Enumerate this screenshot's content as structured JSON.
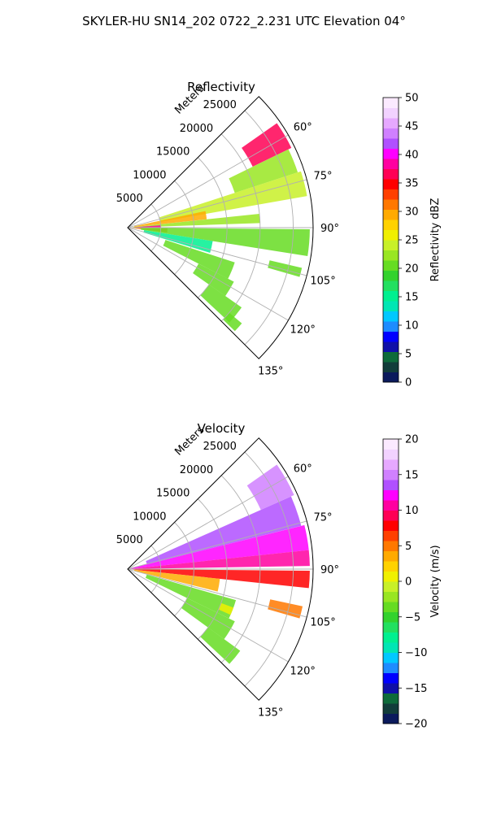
{
  "figure": {
    "suptitle": "SKYLER-HU  SN14_202  0722_2.231 UTC Elevation 04°"
  },
  "chart_data": [
    {
      "type": "heatmap",
      "subtype": "polar-sector",
      "title": "Reflectivity",
      "radial_label": "Meters",
      "radial_ticks": [
        "5000",
        "10000",
        "15000",
        "20000",
        "25000"
      ],
      "radial_tick_values": [
        5000,
        10000,
        15000,
        20000,
        25000
      ],
      "angle_ticks": [
        "60°",
        "75°",
        "90°",
        "105°",
        "120°",
        "135°"
      ],
      "angle_tick_values": [
        60,
        75,
        90,
        105,
        120,
        135
      ],
      "theta_range": [
        45,
        135
      ],
      "r_max": 28000,
      "grid": true,
      "colorbar": {
        "label": "Reflectivity dBZ",
        "range": [
          0,
          50
        ],
        "ticks": [
          "0",
          "5",
          "10",
          "15",
          "20",
          "25",
          "30",
          "35",
          "40",
          "45",
          "50"
        ],
        "tick_values": [
          0,
          5,
          10,
          15,
          20,
          25,
          30,
          35,
          40,
          45,
          50
        ],
        "colors": [
          "#0b1a5c",
          "#123d3a",
          "#0e6b3a",
          "#1010a8",
          "#0000ff",
          "#1e8cff",
          "#00c8ff",
          "#00e6b4",
          "#00f090",
          "#22e060",
          "#33d22d",
          "#66dc22",
          "#99e622",
          "#c8f028",
          "#f0f000",
          "#ffd200",
          "#ffaa00",
          "#ff7800",
          "#ff4000",
          "#ff0000",
          "#ff0055",
          "#ff00a0",
          "#ff00ff",
          "#b050ff",
          "#d080ff",
          "#e6a8ff",
          "#f2d2ff",
          "#fbeaff"
        ]
      },
      "regions": [
        {
          "theta": [
            55,
            64
          ],
          "r": [
            21000,
            27500
          ],
          "value": 37
        },
        {
          "theta": [
            64,
            72
          ],
          "r": [
            17000,
            27000
          ],
          "value": 22
        },
        {
          "theta": [
            72,
            80
          ],
          "r": [
            5000,
            27500
          ],
          "value": 24
        },
        {
          "theta": [
            78,
            84
          ],
          "r": [
            1000,
            12000
          ],
          "value": 30
        },
        {
          "theta": [
            84,
            88
          ],
          "r": [
            500,
            20000
          ],
          "value": 22
        },
        {
          "theta": [
            86,
            90
          ],
          "r": [
            300,
            5000
          ],
          "value": 38
        },
        {
          "theta": [
            91,
            97
          ],
          "r": [
            300,
            6000
          ],
          "value": 32
        },
        {
          "theta": [
            90.5,
            99
          ],
          "r": [
            2000,
            27500
          ],
          "value": 20
        },
        {
          "theta": [
            99,
            107
          ],
          "r": [
            2500,
            13000
          ],
          "value": 16
        },
        {
          "theta": [
            103,
            106
          ],
          "r": [
            22000,
            27000
          ],
          "value": 20
        },
        {
          "theta": [
            108,
            117
          ],
          "r": [
            6000,
            17000
          ],
          "value": 21
        },
        {
          "theta": [
            117,
            125
          ],
          "r": [
            12000,
            18000
          ],
          "value": 21
        },
        {
          "theta": [
            125,
            133
          ],
          "r": [
            15000,
            21000
          ],
          "value": 20
        },
        {
          "theta": [
            130,
            134
          ],
          "r": [
            20000,
            22500
          ],
          "value": 21
        }
      ]
    },
    {
      "type": "heatmap",
      "subtype": "polar-sector",
      "title": "Velocity",
      "radial_label": "Meters",
      "radial_ticks": [
        "5000",
        "10000",
        "15000",
        "20000",
        "25000"
      ],
      "radial_tick_values": [
        5000,
        10000,
        15000,
        20000,
        25000
      ],
      "angle_ticks": [
        "60°",
        "75°",
        "90°",
        "105°",
        "120°",
        "135°"
      ],
      "angle_tick_values": [
        60,
        75,
        90,
        105,
        120,
        135
      ],
      "theta_range": [
        45,
        135
      ],
      "r_max": 28000,
      "grid": true,
      "colorbar": {
        "label": "Velocity (m/s)",
        "range": [
          -20,
          20
        ],
        "ticks": [
          "−20",
          "−15",
          "−10",
          "−5",
          "0",
          "5",
          "10",
          "15",
          "20"
        ],
        "tick_values": [
          -20,
          -15,
          -10,
          -5,
          0,
          5,
          10,
          15,
          20
        ],
        "colors": [
          "#0b1a5c",
          "#123d3a",
          "#0e6b3a",
          "#1010a8",
          "#0000ff",
          "#1e8cff",
          "#00c8ff",
          "#00e6b4",
          "#00f090",
          "#22e060",
          "#33d22d",
          "#66dc22",
          "#99e622",
          "#c8f028",
          "#f0f000",
          "#ffd200",
          "#ffaa00",
          "#ff7800",
          "#ff4000",
          "#ff0000",
          "#ff0055",
          "#ff00a0",
          "#ff00ff",
          "#b050ff",
          "#d080ff",
          "#e6a8ff",
          "#f2d2ff",
          "#fbeaff"
        ]
      },
      "regions": [
        {
          "theta": [
            55,
            66
          ],
          "r": [
            22000,
            27500
          ],
          "value": 15
        },
        {
          "theta": [
            66,
            76
          ],
          "r": [
            3000,
            27000
          ],
          "value": 13
        },
        {
          "theta": [
            76,
            84
          ],
          "r": [
            500,
            27500
          ],
          "value": 12
        },
        {
          "theta": [
            84,
            89
          ],
          "r": [
            500,
            27500
          ],
          "value": 10
        },
        {
          "theta": [
            90.5,
            96
          ],
          "r": [
            500,
            27500
          ],
          "value": 8
        },
        {
          "theta": [
            96,
            104
          ],
          "r": [
            1000,
            14000
          ],
          "value": 3
        },
        {
          "theta": [
            102,
            106
          ],
          "r": [
            22000,
            27000
          ],
          "value": 5
        },
        {
          "theta": [
            106,
            116
          ],
          "r": [
            3000,
            17000
          ],
          "value": -3
        },
        {
          "theta": [
            116,
            126
          ],
          "r": [
            10000,
            18000
          ],
          "value": -3
        },
        {
          "theta": [
            126,
            133
          ],
          "r": [
            15000,
            21000
          ],
          "value": -4
        },
        {
          "theta": [
            110,
            114
          ],
          "r": [
            15000,
            17000
          ],
          "value": 1
        }
      ]
    }
  ]
}
